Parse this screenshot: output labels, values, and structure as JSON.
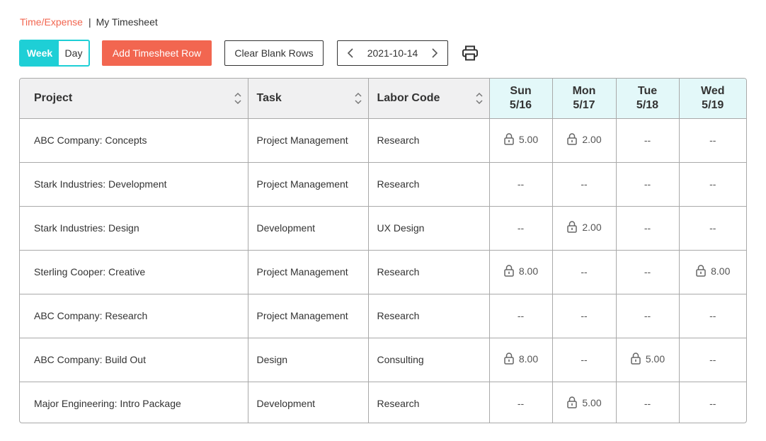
{
  "breadcrumb": {
    "parent": "Time/Expense",
    "separator": "|",
    "current": "My Timesheet"
  },
  "toolbar": {
    "view_toggle": {
      "week_label": "Week",
      "day_label": "Day",
      "active": "week"
    },
    "add_row_label": "Add Timesheet Row",
    "clear_blank_label": "Clear Blank Rows",
    "date": "2021-10-14",
    "print_icon": "printer-icon"
  },
  "table": {
    "headers": {
      "project": "Project",
      "task": "Task",
      "labor_code": "Labor Code",
      "days": [
        {
          "day": "Sun",
          "date": "5/16"
        },
        {
          "day": "Mon",
          "date": "5/17"
        },
        {
          "day": "Tue",
          "date": "5/18"
        },
        {
          "day": "Wed",
          "date": "5/19"
        }
      ]
    },
    "rows": [
      {
        "project": "ABC Company: Concepts",
        "task": "Project Management",
        "labor": "Research",
        "hours": [
          "5.00",
          "2.00",
          "--",
          "--"
        ]
      },
      {
        "project": "Stark Industries: Development",
        "task": "Project Management",
        "labor": "Research",
        "hours": [
          "--",
          "--",
          "--",
          "--"
        ]
      },
      {
        "project": "Stark Industries: Design",
        "task": "Development",
        "labor": "UX Design",
        "hours": [
          "--",
          "2.00",
          "--",
          "--"
        ]
      },
      {
        "project": "Sterling Cooper: Creative",
        "task": "Project Management",
        "labor": "Research",
        "hours": [
          "8.00",
          "--",
          "--",
          "8.00"
        ]
      },
      {
        "project": "ABC Company: Research",
        "task": "Project Management",
        "labor": "Research",
        "hours": [
          "--",
          "--",
          "--",
          "--"
        ]
      },
      {
        "project": "ABC Company: Build Out",
        "task": "Design",
        "labor": "Consulting",
        "hours": [
          "8.00",
          "--",
          "5.00",
          "--"
        ]
      },
      {
        "project": "Major Engineering: Intro Package",
        "task": "Development",
        "labor": "Research",
        "hours": [
          "--",
          "5.00",
          "--",
          "--"
        ]
      }
    ],
    "empty_value": "--",
    "locked_icon": "lock-icon",
    "sort_icon": "sort-icon"
  },
  "colors": {
    "accent_teal": "#1ecfd6",
    "accent_orange": "#f26650",
    "header_day_bg": "#e3f8f9",
    "header_bg": "#f0f0f1"
  }
}
